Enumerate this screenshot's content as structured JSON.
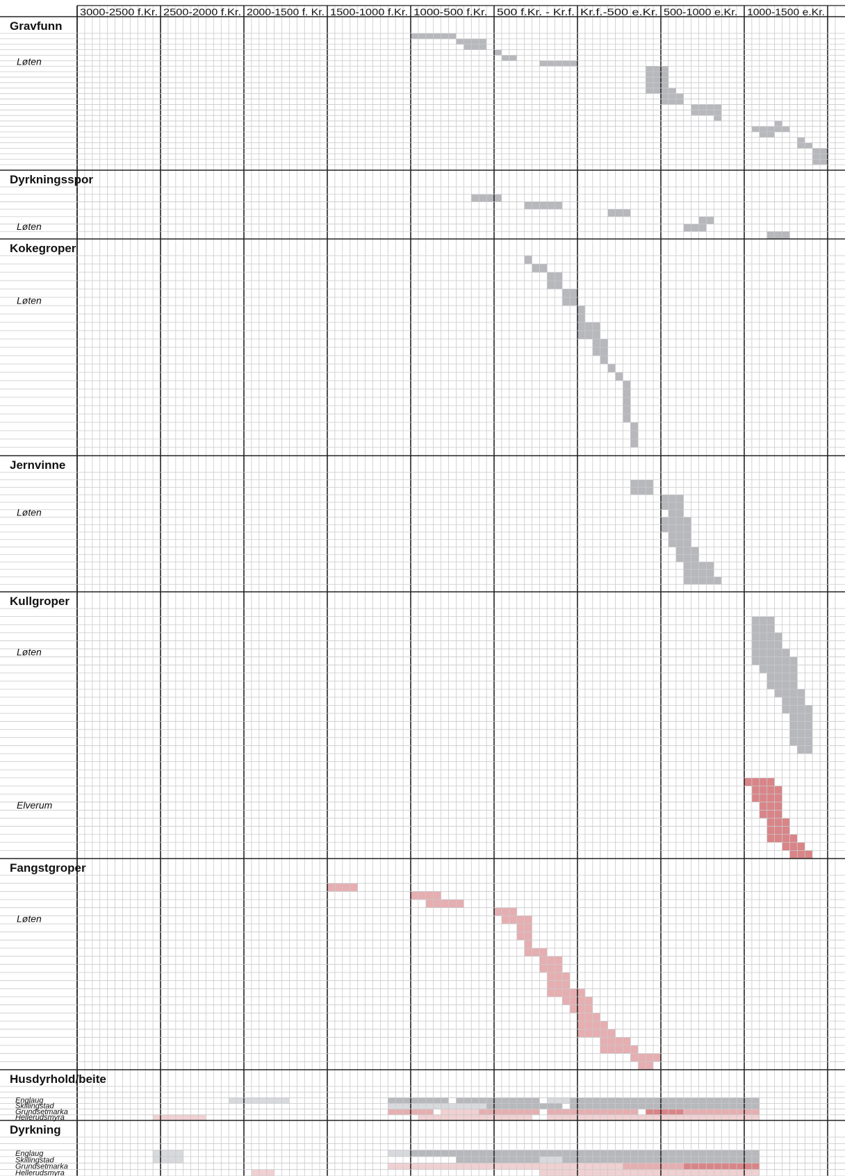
{
  "chart_data": {
    "type": "range_timeline",
    "x_unit": "sub-steps of a 500-year period (11 per period; 0 = 3000 f.Kr. edge of first column)",
    "periods": [
      "3000-2500 f.Kr.",
      "2500-2000 f.Kr.",
      "2000-1500 f. Kr.",
      "1500-1000 f.Kr.",
      "1000-500 f.Kr.",
      "500 f.Kr. - Kr.f.",
      "Kr.f.-500 e.Kr.",
      "500-1000 e.Kr.",
      "1000-1500 e.Kr.",
      ""
    ],
    "colors": {
      "grey": "#b7b8bc",
      "light_grey": "#d8d9dc",
      "red": "#e6aeb0",
      "dark_red": "#d98487",
      "light_red": "#f0d0d1"
    },
    "sections": [
      {
        "title": "Gravfunn",
        "rows": 25,
        "labels": [
          {
            "text": "Løten",
            "row": 5
          }
        ],
        "bars": [
          [
            0,
            44,
            50,
            "grey"
          ],
          [
            1,
            50,
            51,
            "grey"
          ],
          [
            1,
            51,
            54,
            "grey"
          ],
          [
            2,
            51,
            54,
            "grey"
          ],
          [
            3,
            55,
            56,
            "grey"
          ],
          [
            4,
            56,
            58,
            "grey"
          ],
          [
            5,
            61,
            66,
            "grey"
          ],
          [
            6,
            75,
            78,
            "grey"
          ],
          [
            7,
            75,
            78,
            "grey"
          ],
          [
            8,
            75,
            78,
            "grey"
          ],
          [
            9,
            75,
            78,
            "grey"
          ],
          [
            10,
            75,
            79,
            "grey"
          ],
          [
            11,
            77,
            80,
            "grey"
          ],
          [
            12,
            77,
            80,
            "grey"
          ],
          [
            13,
            81,
            85,
            "grey"
          ],
          [
            14,
            81,
            85,
            "grey"
          ],
          [
            15,
            84,
            85,
            "grey"
          ],
          [
            16,
            92,
            93,
            "grey"
          ],
          [
            17,
            89,
            94,
            "grey"
          ],
          [
            18,
            90,
            92,
            "grey"
          ],
          [
            19,
            95,
            96,
            "grey"
          ],
          [
            20,
            95,
            97,
            "grey"
          ],
          [
            21,
            97,
            99,
            "grey"
          ],
          [
            22,
            97,
            99,
            "grey"
          ],
          [
            23,
            97,
            99,
            "grey"
          ]
        ]
      },
      {
        "title": "Dyrkningsspor",
        "rows": 7,
        "labels": [
          {
            "text": "Løten",
            "row": 5
          }
        ],
        "bars": [
          [
            1,
            52,
            56,
            "grey"
          ],
          [
            2,
            59,
            64,
            "grey"
          ],
          [
            3,
            70,
            73,
            "grey"
          ],
          [
            4,
            82,
            84,
            "grey"
          ],
          [
            5,
            80,
            83,
            "grey"
          ],
          [
            6,
            91,
            94,
            "grey"
          ]
        ]
      },
      {
        "title": "Kokegroper",
        "rows": 24,
        "labels": [
          {
            "text": "Løten",
            "row": 5
          }
        ],
        "bars": [
          [
            0,
            59,
            60,
            "grey"
          ],
          [
            1,
            60,
            62,
            "grey"
          ],
          [
            2,
            62,
            64,
            "grey"
          ],
          [
            3,
            62,
            64,
            "grey"
          ],
          [
            4,
            64,
            66,
            "grey"
          ],
          [
            5,
            64,
            66,
            "grey"
          ],
          [
            6,
            66,
            67,
            "grey"
          ],
          [
            7,
            66,
            67,
            "grey"
          ],
          [
            8,
            66,
            69,
            "grey"
          ],
          [
            9,
            66,
            69,
            "grey"
          ],
          [
            10,
            68,
            70,
            "grey"
          ],
          [
            11,
            68,
            70,
            "grey"
          ],
          [
            12,
            69,
            70,
            "grey"
          ],
          [
            13,
            70,
            71,
            "grey"
          ],
          [
            14,
            71,
            72,
            "grey"
          ],
          [
            15,
            72,
            73,
            "grey"
          ],
          [
            16,
            72,
            73,
            "grey"
          ],
          [
            17,
            72,
            73,
            "grey"
          ],
          [
            18,
            72,
            73,
            "grey"
          ],
          [
            19,
            72,
            73,
            "grey"
          ],
          [
            20,
            73,
            74,
            "grey"
          ],
          [
            21,
            73,
            74,
            "grey"
          ],
          [
            22,
            73,
            74,
            "grey"
          ]
        ]
      },
      {
        "title": "Jernvinne",
        "rows": 16,
        "labels": [
          {
            "text": "Løten",
            "row": 5
          }
        ],
        "bars": [
          [
            1,
            73,
            76,
            "grey"
          ],
          [
            2,
            73,
            76,
            "grey"
          ],
          [
            3,
            77,
            80,
            "grey"
          ],
          [
            4,
            77,
            80,
            "grey"
          ],
          [
            5,
            78,
            80,
            "grey"
          ],
          [
            6,
            77,
            81,
            "grey"
          ],
          [
            7,
            77,
            81,
            "grey"
          ],
          [
            8,
            78,
            81,
            "grey"
          ],
          [
            9,
            78,
            81,
            "grey"
          ],
          [
            10,
            79,
            82,
            "grey"
          ],
          [
            11,
            79,
            82,
            "grey"
          ],
          [
            12,
            80,
            84,
            "grey"
          ],
          [
            13,
            80,
            84,
            "grey"
          ],
          [
            14,
            80,
            85,
            "grey"
          ]
        ]
      },
      {
        "title": "Kullgroper",
        "rows": 31,
        "labels": [
          {
            "text": "Løten",
            "row": 5
          },
          {
            "text": "Elverum",
            "row": 24
          }
        ],
        "bars": [
          [
            1,
            89,
            92,
            "grey"
          ],
          [
            2,
            89,
            92,
            "grey"
          ],
          [
            3,
            89,
            93,
            "grey"
          ],
          [
            4,
            89,
            93,
            "grey"
          ],
          [
            5,
            89,
            94,
            "grey"
          ],
          [
            6,
            89,
            95,
            "grey"
          ],
          [
            7,
            90,
            95,
            "grey"
          ],
          [
            8,
            91,
            95,
            "grey"
          ],
          [
            9,
            91,
            95,
            "grey"
          ],
          [
            10,
            92,
            96,
            "grey"
          ],
          [
            11,
            93,
            96,
            "grey"
          ],
          [
            12,
            93,
            97,
            "grey"
          ],
          [
            13,
            94,
            97,
            "grey"
          ],
          [
            14,
            94,
            97,
            "grey"
          ],
          [
            15,
            94,
            97,
            "grey"
          ],
          [
            16,
            94,
            97,
            "grey"
          ],
          [
            17,
            95,
            97,
            "grey"
          ],
          [
            21,
            88,
            92,
            "dark_red"
          ],
          [
            22,
            89,
            93,
            "dark_red"
          ],
          [
            23,
            89,
            93,
            "dark_red"
          ],
          [
            24,
            90,
            93,
            "dark_red"
          ],
          [
            25,
            90,
            93,
            "dark_red"
          ],
          [
            26,
            91,
            94,
            "dark_red"
          ],
          [
            27,
            91,
            94,
            "dark_red"
          ],
          [
            28,
            91,
            95,
            "dark_red"
          ],
          [
            29,
            93,
            96,
            "dark_red"
          ],
          [
            30,
            94,
            97,
            "dark_red"
          ]
        ]
      },
      {
        "title": "Fangstgroper",
        "rows": 24,
        "labels": [
          {
            "text": "Løten",
            "row": 5
          }
        ],
        "bars": [
          [
            1,
            33,
            37,
            "red"
          ],
          [
            2,
            44,
            48,
            "red"
          ],
          [
            3,
            46,
            51,
            "red"
          ],
          [
            4,
            55,
            58,
            "red"
          ],
          [
            5,
            56,
            60,
            "red"
          ],
          [
            6,
            58,
            60,
            "red"
          ],
          [
            7,
            58,
            60,
            "red"
          ],
          [
            8,
            59,
            60,
            "red"
          ],
          [
            9,
            59,
            62,
            "red"
          ],
          [
            10,
            61,
            64,
            "red"
          ],
          [
            11,
            61,
            64,
            "red"
          ],
          [
            12,
            62,
            65,
            "red"
          ],
          [
            13,
            62,
            65,
            "red"
          ],
          [
            14,
            62,
            67,
            "red"
          ],
          [
            15,
            64,
            68,
            "red"
          ],
          [
            16,
            65,
            68,
            "red"
          ],
          [
            17,
            66,
            69,
            "red"
          ],
          [
            18,
            66,
            70,
            "red"
          ],
          [
            19,
            66,
            71,
            "red"
          ],
          [
            20,
            69,
            73,
            "red"
          ],
          [
            21,
            69,
            74,
            "red"
          ],
          [
            22,
            73,
            77,
            "red"
          ],
          [
            23,
            74,
            76,
            "red"
          ]
        ]
      },
      {
        "title": "Husdyrhold/beite",
        "rows": 6,
        "labels": [
          {
            "text": "Englaug",
            "row": 2,
            "size": "small"
          },
          {
            "text": "Skillingstad",
            "row": 3,
            "size": "small"
          },
          {
            "text": "Grundsetmarka",
            "row": 4,
            "size": "small"
          },
          {
            "text": "Hellerudsmyra",
            "row": 5,
            "size": "small"
          }
        ],
        "bars": [
          [
            2,
            20,
            28,
            "light_grey"
          ],
          [
            2,
            41,
            49,
            "grey"
          ],
          [
            2,
            50,
            61,
            "grey"
          ],
          [
            2,
            62,
            65,
            "light_grey"
          ],
          [
            2,
            65,
            90,
            "grey"
          ],
          [
            3,
            41,
            54,
            "light_grey"
          ],
          [
            3,
            54,
            64,
            "grey"
          ],
          [
            3,
            65,
            90,
            "grey"
          ],
          [
            4,
            41,
            47,
            "red"
          ],
          [
            4,
            48,
            53,
            "light_red"
          ],
          [
            4,
            53,
            61,
            "red"
          ],
          [
            4,
            62,
            74,
            "red"
          ],
          [
            4,
            75,
            80,
            "dark_red"
          ],
          [
            4,
            80,
            90,
            "red"
          ],
          [
            5,
            10,
            17,
            "light_red"
          ],
          [
            5,
            45,
            60,
            "light_red"
          ],
          [
            5,
            62,
            90,
            "light_red"
          ]
        ]
      },
      {
        "title": "Dyrkning",
        "rows": 6,
        "labels": [
          {
            "text": "Englaug",
            "row": 2,
            "size": "small"
          },
          {
            "text": "Skillingstad",
            "row": 3,
            "size": "small"
          },
          {
            "text": "Grundsetmarka",
            "row": 4,
            "size": "small"
          },
          {
            "text": "Hellerudsmyra",
            "row": 5,
            "size": "small"
          }
        ],
        "bars": [
          [
            2,
            10,
            14,
            "light_grey"
          ],
          [
            2,
            41,
            44,
            "light_grey"
          ],
          [
            2,
            44,
            90,
            "grey"
          ],
          [
            3,
            10,
            14,
            "light_grey"
          ],
          [
            3,
            50,
            61,
            "grey"
          ],
          [
            3,
            61,
            64,
            "light_grey"
          ],
          [
            3,
            64,
            90,
            "grey"
          ],
          [
            4,
            41,
            72,
            "light_red"
          ],
          [
            4,
            72,
            80,
            "red"
          ],
          [
            4,
            80,
            90,
            "dark_red"
          ],
          [
            5,
            23,
            26,
            "light_red"
          ],
          [
            5,
            61,
            90,
            "light_red"
          ]
        ]
      }
    ]
  }
}
